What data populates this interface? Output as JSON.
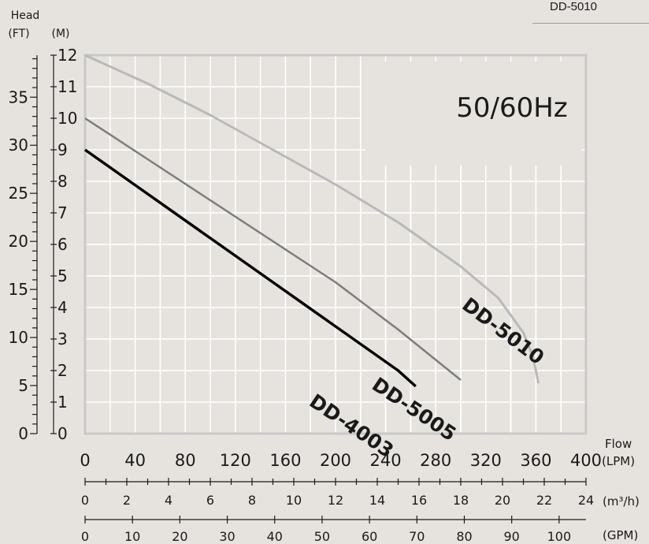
{
  "header": {
    "model_label": "DD-5010"
  },
  "chart_data": {
    "type": "line",
    "title": "",
    "annotation": "50/60Hz",
    "ylabel": "Head",
    "y_units": [
      "(FT)",
      "(M)"
    ],
    "xlabel": "Flow",
    "x_units": [
      "(LPM)",
      "(m³/h)",
      "(GPM)"
    ],
    "xlim": [
      0,
      400
    ],
    "ylim": [
      0,
      12
    ],
    "grid": true,
    "x_ticks_lpm": [
      "0",
      "40",
      "80",
      "120",
      "160",
      "200",
      "240",
      "280",
      "320",
      "360",
      "400"
    ],
    "x_ticks_m3h": [
      "0",
      "2",
      "4",
      "6",
      "8",
      "10",
      "12",
      "14",
      "16",
      "18",
      "20",
      "22",
      "24"
    ],
    "x_ticks_gpm": [
      "0",
      "10",
      "20",
      "30",
      "40",
      "50",
      "60",
      "70",
      "80",
      "90",
      "100"
    ],
    "y_ticks_m": [
      "0",
      "1",
      "2",
      "3",
      "4",
      "5",
      "6",
      "7",
      "8",
      "9",
      "10",
      "11",
      "12"
    ],
    "y_ticks_ft": [
      "0",
      "5",
      "10",
      "15",
      "20",
      "25",
      "30",
      "35"
    ],
    "series": [
      {
        "name": "DD-5010",
        "color": "#b9b9b9",
        "x": [
          0,
          50,
          100,
          150,
          200,
          250,
          300,
          330,
          350,
          358,
          362
        ],
        "y": [
          12,
          11.1,
          10.1,
          9.0,
          7.9,
          6.7,
          5.3,
          4.3,
          3.2,
          2.4,
          1.6
        ]
      },
      {
        "name": "DD-5005",
        "color": "#7d7d7d",
        "x": [
          0,
          50,
          100,
          150,
          200,
          250,
          300
        ],
        "y": [
          10,
          8.7,
          7.4,
          6.1,
          4.8,
          3.3,
          1.7
        ]
      },
      {
        "name": "DD-4003",
        "color": "#000000",
        "x": [
          0,
          50,
          100,
          150,
          200,
          250,
          264
        ],
        "y": [
          9,
          7.6,
          6.2,
          4.8,
          3.4,
          2.0,
          1.5
        ]
      }
    ]
  }
}
